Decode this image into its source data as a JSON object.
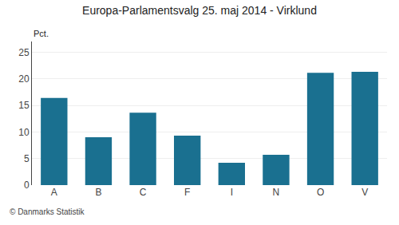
{
  "chart_data": {
    "type": "bar",
    "title": "Europa-Parlamentsvalg 25. maj 2014 - Virklund",
    "categories": [
      "A",
      "B",
      "C",
      "F",
      "I",
      "N",
      "O",
      "V"
    ],
    "values": [
      16.4,
      9.0,
      13.6,
      9.3,
      4.2,
      5.7,
      21.1,
      21.3
    ],
    "color": "#1a7090",
    "ylabel": "Pct.",
    "ylim": [
      0,
      27
    ],
    "yticks": [
      0,
      5,
      10,
      15,
      20,
      25
    ],
    "grid": true,
    "annotations": [
      "© Danmarks Statistik"
    ]
  }
}
